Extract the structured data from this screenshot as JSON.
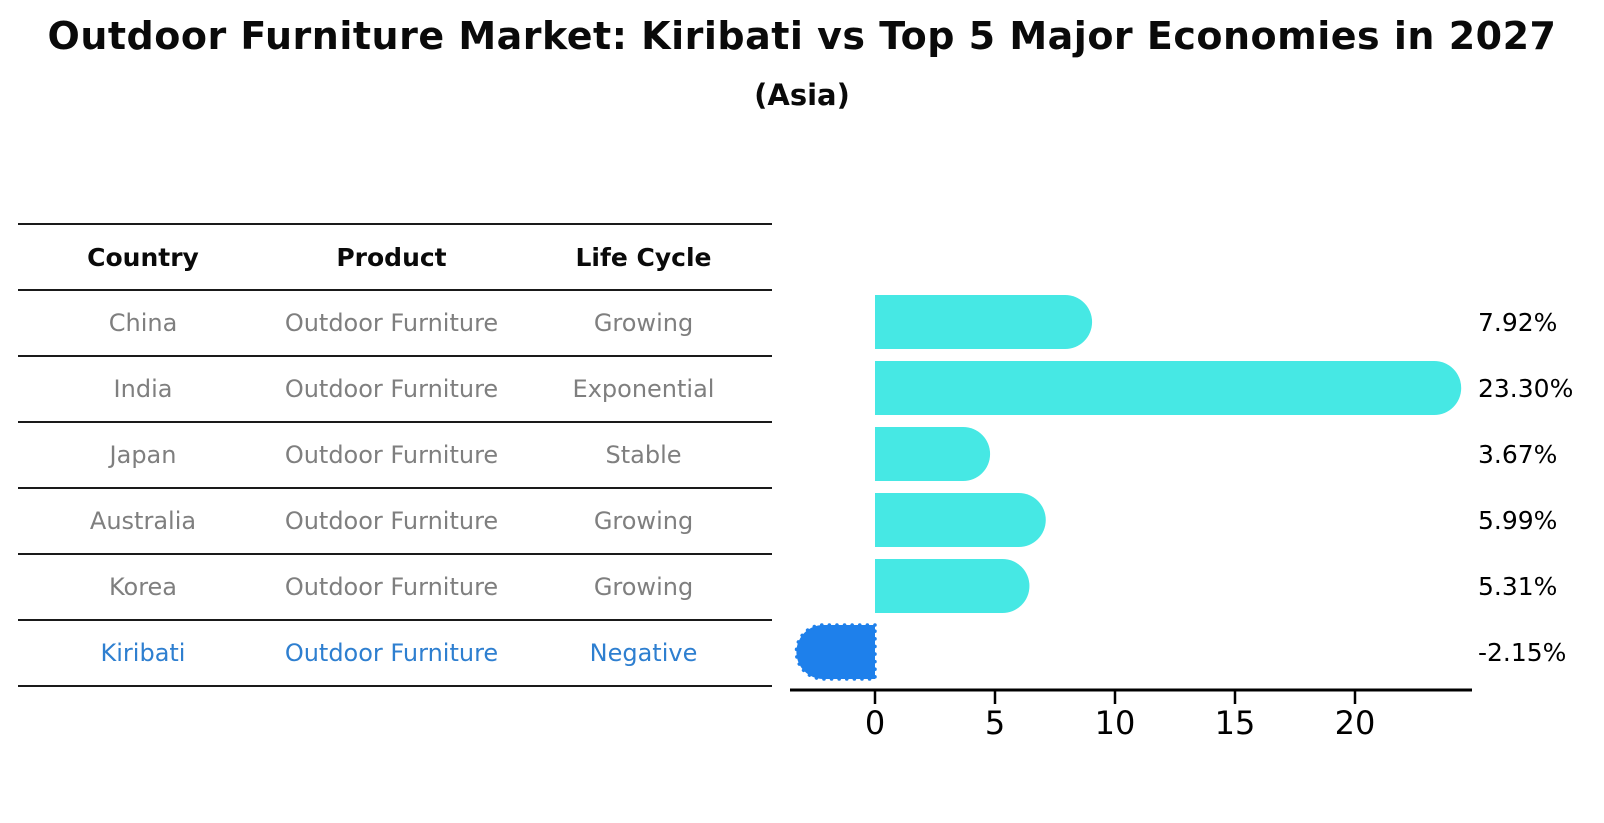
{
  "title": "Outdoor Furniture Market: Kiribati vs Top 5 Major Economies in 2027",
  "subtitle": "(Asia)",
  "table": {
    "headers": [
      "Country",
      "Product",
      "Life Cycle"
    ],
    "rows": [
      {
        "country": "China",
        "product": "Outdoor Furniture",
        "life_cycle": "Growing",
        "highlight": false
      },
      {
        "country": "India",
        "product": "Outdoor Furniture",
        "life_cycle": "Exponential",
        "highlight": false
      },
      {
        "country": "Japan",
        "product": "Outdoor Furniture",
        "life_cycle": "Stable",
        "highlight": false
      },
      {
        "country": "Australia",
        "product": "Outdoor Furniture",
        "life_cycle": "Growing",
        "highlight": false
      },
      {
        "country": "Korea",
        "product": "Outdoor Furniture",
        "life_cycle": "Growing",
        "highlight": false
      },
      {
        "country": "Kiribati",
        "product": "Outdoor Furniture",
        "life_cycle": "Negative",
        "highlight": true
      }
    ]
  },
  "chart_data": {
    "type": "bar",
    "orientation": "horizontal",
    "title": "Outdoor Furniture Market: Kiribati vs Top 5 Major Economies in 2027",
    "subtitle": "(Asia)",
    "categories": [
      "China",
      "India",
      "Japan",
      "Australia",
      "Korea",
      "Kiribati"
    ],
    "values": [
      7.92,
      23.3,
      3.67,
      5.99,
      5.31,
      -2.15
    ],
    "value_labels": [
      "7.92%",
      "23.30%",
      "3.67%",
      "5.99%",
      "5.31%",
      "-2.15%"
    ],
    "x_ticks": [
      "0",
      "5",
      "10",
      "15",
      "20"
    ],
    "x_tick_values": [
      0,
      5,
      10,
      15,
      20
    ],
    "xlim": [
      -3.55,
      24.9
    ],
    "grid": false,
    "legend": null,
    "highlight_index": 5
  },
  "colors": {
    "bar_color": "#46E8E4",
    "highlight_bar_color": "#1E80EB",
    "highlight_text_color": "#2E7FD0",
    "row_text_color": "#7f7f7f",
    "header_text_color": "#0a0a0a",
    "axis_color": "#000000",
    "table_line_color": "#1a1a1a"
  }
}
